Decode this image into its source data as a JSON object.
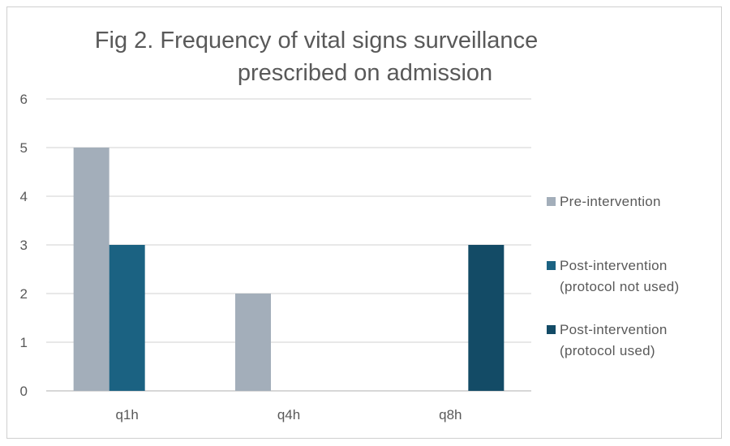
{
  "chart_data": {
    "type": "bar",
    "title_line1": "Fig 2. Frequency of vital signs surveillance",
    "title_line2": "prescribed on admission",
    "categories": [
      "q1h",
      "q4h",
      "q8h"
    ],
    "ylim": [
      0,
      6
    ],
    "yticks": [
      "0",
      "1",
      "2",
      "3",
      "4",
      "5",
      "6"
    ],
    "grid": true,
    "legend_position": "right",
    "series": [
      {
        "name": "Pre-intervention",
        "color": "#a3aeba",
        "values": [
          5,
          2,
          0
        ]
      },
      {
        "name": "Post-intervention\n(protocol not used)",
        "color": "#1b6282",
        "values": [
          3,
          0,
          0
        ]
      },
      {
        "name": "Post-intervention\n(protocol used)",
        "color": "#134b66",
        "values": [
          0,
          0,
          3
        ]
      }
    ]
  }
}
